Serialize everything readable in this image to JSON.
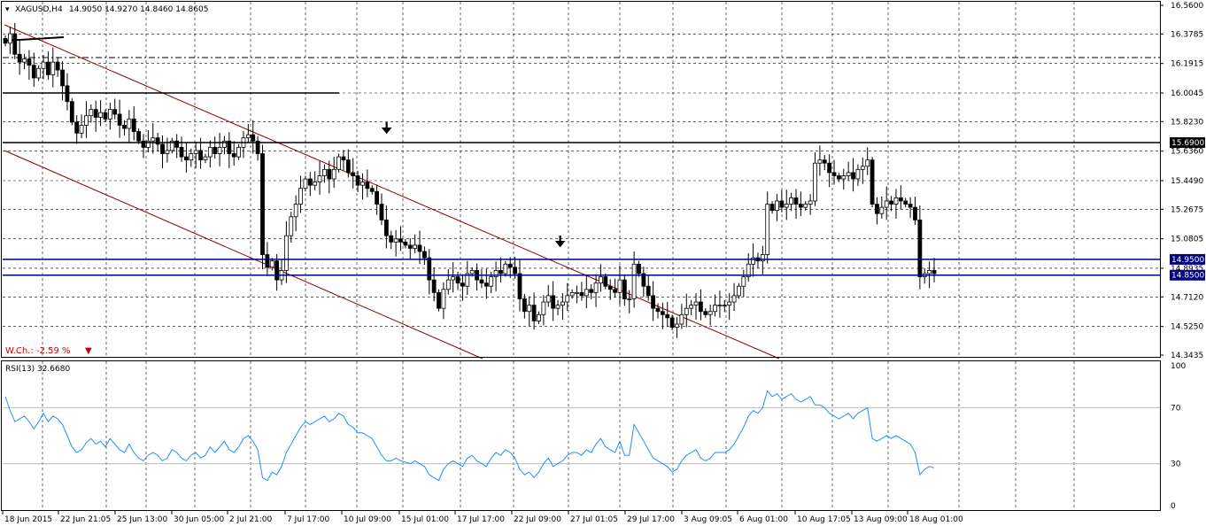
{
  "header": {
    "symbol": "XAGUSD,H4",
    "ohlc": "14.9050 14.9270 14.8460 14.8605"
  },
  "indicator": {
    "label": "RSI(13) 32.6680",
    "levels": [
      "100",
      "70",
      "30",
      "0"
    ]
  },
  "weekly_change": "W.Ch.: -2.59 %",
  "colors": {
    "bull": "#ffffff",
    "bear": "#000000",
    "rsi": "#1e90ff",
    "channel": "#8b0000",
    "hline": "#000080",
    "grid": "#000000"
  },
  "chart_data": {
    "type": "candlestick",
    "ylim": [
      14.3435,
      16.56
    ],
    "y_ticks": [
      "16.5600",
      "16.3785",
      "16.1915",
      "16.0045",
      "15.8230",
      "15.6360",
      "15.4490",
      "15.2675",
      "15.0805",
      "14.8935",
      "14.7120",
      "14.5250",
      "14.3435"
    ],
    "x_labels": [
      "18 Jun 2015",
      "22 Jun 21:05",
      "25 Jun 13:00",
      "30 Jun 05:00",
      "2 Jul 21:00",
      "7 Jul 17:00",
      "10 Jul 09:00",
      "15 Jul 01:00",
      "17 Jul 17:00",
      "22 Jul 09:00",
      "27 Jul 01:05",
      "29 Jul 17:00",
      "3 Aug 09:05",
      "6 Aug 01:00",
      "10 Aug 17:05",
      "13 Aug 09:00",
      "18 Aug 01:00"
    ],
    "price_tags": [
      "15.6900",
      "14.9500",
      "14.8500"
    ],
    "hlines": [
      15.69,
      14.95,
      14.85
    ],
    "close_series": [
      16.32,
      16.38,
      16.25,
      16.2,
      16.22,
      16.18,
      16.1,
      16.16,
      16.2,
      16.12,
      16.2,
      16.15,
      16.05,
      15.95,
      15.82,
      15.75,
      15.8,
      15.86,
      15.9,
      15.85,
      15.88,
      15.84,
      15.9,
      15.87,
      15.8,
      15.78,
      15.84,
      15.76,
      15.7,
      15.66,
      15.7,
      15.72,
      15.68,
      15.62,
      15.64,
      15.7,
      15.66,
      15.6,
      15.58,
      15.62,
      15.64,
      15.58,
      15.6,
      15.66,
      15.62,
      15.66,
      15.7,
      15.62,
      15.6,
      15.66,
      15.72,
      15.74,
      15.7,
      15.62,
      14.98,
      14.9,
      14.94,
      14.82,
      14.88,
      15.1,
      15.22,
      15.3,
      15.4,
      15.46,
      15.42,
      15.44,
      15.48,
      15.52,
      15.46,
      15.52,
      15.6,
      15.58,
      15.5,
      15.48,
      15.42,
      15.44,
      15.4,
      15.38,
      15.3,
      15.2,
      15.1,
      15.06,
      15.08,
      15.06,
      15.04,
      15.02,
      15.04,
      15.0,
      14.96,
      14.82,
      14.74,
      14.64,
      14.76,
      14.82,
      14.84,
      14.8,
      14.78,
      14.86,
      14.88,
      14.82,
      14.8,
      14.78,
      14.84,
      14.88,
      14.86,
      14.92,
      14.9,
      14.86,
      14.7,
      14.62,
      14.66,
      14.56,
      14.6,
      14.68,
      14.72,
      14.64,
      14.66,
      14.68,
      14.72,
      14.74,
      14.74,
      14.72,
      14.76,
      14.74,
      14.8,
      14.84,
      14.78,
      14.76,
      14.74,
      14.82,
      14.7,
      14.7,
      14.92,
      14.86,
      14.78,
      14.72,
      14.64,
      14.62,
      14.6,
      14.58,
      14.52,
      14.54,
      14.6,
      14.64,
      14.66,
      14.68,
      14.62,
      14.6,
      14.62,
      14.66,
      14.66,
      14.66,
      14.68,
      14.72,
      14.78,
      14.84,
      14.92,
      14.96,
      14.94,
      14.98,
      15.3,
      15.26,
      15.32,
      15.28,
      15.3,
      15.34,
      15.3,
      15.28,
      15.3,
      15.32,
      15.56,
      15.58,
      15.56,
      15.5,
      15.48,
      15.46,
      15.48,
      15.5,
      15.46,
      15.52,
      15.54,
      15.58,
      15.3,
      15.24,
      15.28,
      15.32,
      15.3,
      15.34,
      15.32,
      15.3,
      15.28,
      15.2,
      14.84,
      14.86,
      14.88,
      14.86
    ],
    "rsi_series": [
      78,
      68,
      60,
      62,
      64,
      60,
      55,
      60,
      66,
      60,
      64,
      62,
      58,
      50,
      42,
      38,
      40,
      45,
      48,
      44,
      46,
      42,
      48,
      44,
      40,
      38,
      44,
      38,
      34,
      32,
      36,
      38,
      36,
      32,
      34,
      40,
      38,
      34,
      32,
      36,
      38,
      34,
      36,
      42,
      38,
      42,
      46,
      40,
      38,
      42,
      48,
      50,
      46,
      40,
      20,
      18,
      24,
      22,
      28,
      38,
      44,
      50,
      56,
      60,
      58,
      60,
      62,
      64,
      60,
      62,
      66,
      64,
      58,
      56,
      52,
      52,
      50,
      48,
      42,
      36,
      32,
      32,
      34,
      32,
      31,
      30,
      32,
      30,
      28,
      22,
      20,
      18,
      26,
      30,
      32,
      30,
      28,
      34,
      36,
      32,
      30,
      28,
      34,
      38,
      36,
      40,
      38,
      34,
      26,
      22,
      24,
      20,
      24,
      30,
      34,
      28,
      30,
      32,
      36,
      38,
      38,
      36,
      40,
      38,
      44,
      48,
      42,
      40,
      38,
      46,
      36,
      36,
      58,
      52,
      46,
      40,
      34,
      32,
      30,
      28,
      24,
      26,
      32,
      36,
      38,
      40,
      34,
      32,
      34,
      38,
      38,
      38,
      40,
      44,
      50,
      56,
      64,
      68,
      66,
      70,
      82,
      78,
      80,
      76,
      78,
      80,
      76,
      74,
      76,
      78,
      72,
      72,
      70,
      66,
      64,
      62,
      64,
      66,
      62,
      66,
      68,
      70,
      48,
      46,
      48,
      50,
      48,
      50,
      48,
      46,
      44,
      38,
      22,
      26,
      28,
      27
    ]
  }
}
